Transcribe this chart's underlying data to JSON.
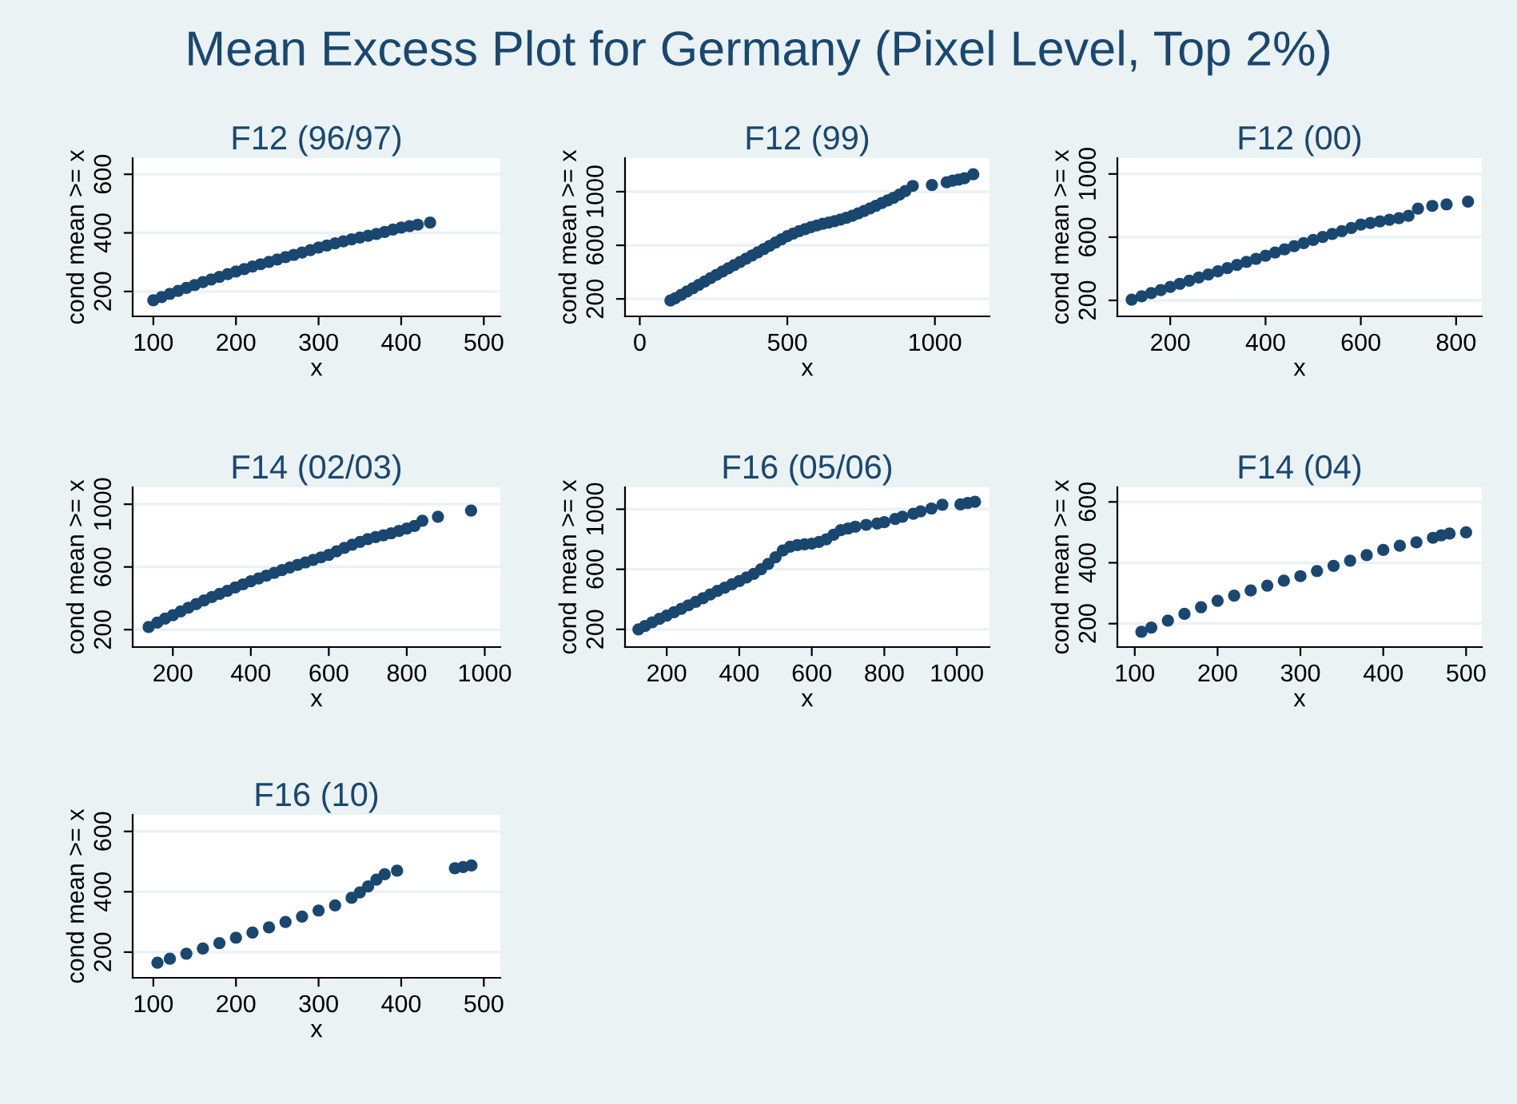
{
  "chart_data": [
    {
      "type": "other",
      "title": "Mean Excess Plot for Germany (Pixel Level, Top 2%)"
    },
    {
      "type": "scatter",
      "title": "F12 (96/97)",
      "xlabel": "x",
      "ylabel": "cond mean >= x",
      "color": "#1a476f",
      "marker": "circle",
      "grid": "y",
      "xlim": [
        75,
        520
      ],
      "ylim": [
        115,
        655
      ],
      "xticks": [
        100,
        200,
        300,
        400,
        500
      ],
      "yticks": [
        200,
        400,
        600
      ],
      "x": [
        100,
        110,
        120,
        130,
        140,
        150,
        160,
        170,
        180,
        190,
        200,
        210,
        220,
        230,
        240,
        250,
        260,
        270,
        280,
        290,
        300,
        310,
        320,
        330,
        340,
        350,
        360,
        370,
        380,
        390,
        400,
        410,
        420,
        435
      ],
      "values": [
        170,
        181,
        192,
        202,
        212,
        222,
        232,
        241,
        250,
        259,
        268,
        276,
        285,
        293,
        301,
        309,
        317,
        325,
        333,
        341,
        350,
        357,
        364,
        371,
        378,
        384,
        390,
        396,
        403,
        411,
        418,
        423,
        428,
        435
      ]
    },
    {
      "type": "scatter",
      "title": "F12 (99)",
      "xlabel": "x",
      "ylabel": "cond mean >= x",
      "color": "#1a476f",
      "marker": "circle",
      "grid": "y",
      "xlim": [
        -50,
        1185
      ],
      "ylim": [
        70,
        1250
      ],
      "xticks": [
        0,
        500,
        1000
      ],
      "yticks": [
        200,
        600,
        1000
      ],
      "x": [
        104,
        120,
        140,
        160,
        180,
        200,
        220,
        240,
        260,
        280,
        300,
        320,
        340,
        360,
        380,
        400,
        420,
        440,
        460,
        480,
        500,
        520,
        540,
        560,
        580,
        600,
        620,
        640,
        660,
        680,
        700,
        720,
        740,
        760,
        780,
        800,
        820,
        840,
        860,
        880,
        900,
        925,
        990,
        1040,
        1060,
        1080,
        1100,
        1130
      ],
      "values": [
        188,
        205,
        230,
        255,
        280,
        305,
        330,
        355,
        380,
        404,
        428,
        452,
        476,
        500,
        524,
        548,
        572,
        596,
        620,
        645,
        668,
        688,
        705,
        720,
        735,
        748,
        760,
        770,
        780,
        792,
        805,
        820,
        838,
        856,
        875,
        895,
        915,
        935,
        955,
        978,
        1005,
        1043,
        1050,
        1070,
        1082,
        1090,
        1100,
        1130
      ]
    },
    {
      "type": "scatter",
      "title": "F12 (00)",
      "xlabel": "x",
      "ylabel": "cond mean >= x",
      "color": "#1a476f",
      "marker": "circle",
      "grid": "y",
      "xlim": [
        89,
        854
      ],
      "ylim": [
        99,
        1100
      ],
      "xticks": [
        200,
        400,
        600,
        800
      ],
      "yticks": [
        200,
        600,
        1000
      ],
      "x": [
        119,
        140,
        160,
        180,
        200,
        220,
        240,
        260,
        280,
        300,
        320,
        340,
        360,
        380,
        400,
        420,
        440,
        460,
        480,
        500,
        520,
        540,
        560,
        580,
        600,
        620,
        640,
        660,
        680,
        700,
        720,
        750,
        780,
        825
      ],
      "values": [
        205,
        226,
        246,
        265,
        285,
        305,
        325,
        345,
        364,
        384,
        404,
        424,
        444,
        463,
        483,
        503,
        523,
        543,
        562,
        582,
        602,
        620,
        638,
        658,
        680,
        690,
        700,
        710,
        720,
        735,
        781,
        798,
        808,
        825
      ]
    },
    {
      "type": "scatter",
      "title": "F14 (02/03)",
      "xlabel": "x",
      "ylabel": "cond mean >= x",
      "color": "#1a476f",
      "marker": "circle",
      "grid": "y",
      "xlim": [
        97,
        1040
      ],
      "ylim": [
        89,
        1108
      ],
      "xticks": [
        200,
        400,
        600,
        800,
        1000
      ],
      "yticks": [
        200,
        600,
        1000
      ],
      "x": [
        138,
        160,
        180,
        200,
        220,
        240,
        260,
        280,
        300,
        320,
        340,
        360,
        380,
        400,
        420,
        440,
        460,
        480,
        500,
        520,
        540,
        560,
        580,
        600,
        620,
        640,
        660,
        680,
        700,
        720,
        740,
        760,
        780,
        800,
        820,
        840,
        880,
        965
      ],
      "values": [
        217,
        245,
        270,
        292,
        316,
        340,
        363,
        386,
        408,
        428,
        448,
        469,
        489,
        509,
        527,
        545,
        562,
        580,
        597,
        613,
        629,
        645,
        661,
        677,
        700,
        722,
        742,
        760,
        778,
        790,
        802,
        815,
        830,
        845,
        862,
        895,
        920,
        960
      ]
    },
    {
      "type": "scatter",
      "title": "F16 (05/06)",
      "xlabel": "x",
      "ylabel": "cond mean >= x",
      "color": "#1a476f",
      "marker": "circle",
      "grid": "y",
      "xlim": [
        85,
        1090
      ],
      "ylim": [
        82,
        1146
      ],
      "xticks": [
        200,
        400,
        600,
        800,
        1000
      ],
      "yticks": [
        200,
        600,
        1000
      ],
      "x": [
        122,
        140,
        160,
        180,
        200,
        220,
        240,
        260,
        280,
        300,
        320,
        340,
        360,
        380,
        400,
        420,
        440,
        460,
        480,
        500,
        520,
        540,
        560,
        580,
        600,
        620,
        640,
        660,
        680,
        700,
        720,
        750,
        780,
        800,
        830,
        850,
        880,
        900,
        930,
        960,
        1010,
        1030,
        1050
      ],
      "values": [
        200,
        222,
        247,
        270,
        292,
        314,
        337,
        360,
        383,
        407,
        432,
        456,
        478,
        500,
        521,
        545,
        570,
        600,
        636,
        680,
        725,
        750,
        761,
        766,
        771,
        782,
        800,
        830,
        861,
        872,
        884,
        896,
        905,
        914,
        935,
        950,
        970,
        986,
        1005,
        1030,
        1032,
        1042,
        1050
      ]
    },
    {
      "type": "scatter",
      "title": "F14 (04)",
      "xlabel": "x",
      "ylabel": "cond mean >= x",
      "color": "#1a476f",
      "marker": "circle",
      "grid": "y",
      "xlim": [
        79,
        519
      ],
      "ylim": [
        123,
        648
      ],
      "xticks": [
        100,
        200,
        300,
        400,
        500
      ],
      "yticks": [
        200,
        400,
        600
      ],
      "x": [
        108,
        120,
        140,
        160,
        180,
        200,
        220,
        240,
        260,
        280,
        300,
        320,
        340,
        360,
        380,
        400,
        420,
        440,
        460,
        470,
        480,
        500
      ],
      "values": [
        173,
        187,
        210,
        232,
        254,
        275,
        292,
        309,
        325,
        341,
        356,
        373,
        390,
        407,
        425,
        442,
        456,
        467,
        482,
        490,
        496,
        500
      ]
    },
    {
      "type": "scatter",
      "title": "F16 (10)",
      "xlabel": "x",
      "ylabel": "cond mean >= x",
      "color": "#1a476f",
      "marker": "circle",
      "grid": "y",
      "xlim": [
        75,
        520
      ],
      "ylim": [
        115,
        655
      ],
      "xticks": [
        100,
        200,
        300,
        400,
        500
      ],
      "yticks": [
        200,
        400,
        600
      ],
      "x": [
        105,
        120,
        140,
        160,
        180,
        200,
        220,
        240,
        260,
        280,
        300,
        320,
        340,
        350,
        360,
        370,
        380,
        395,
        465,
        475,
        485
      ],
      "values": [
        165,
        178,
        195,
        212,
        230,
        248,
        265,
        282,
        300,
        318,
        338,
        355,
        380,
        398,
        418,
        440,
        458,
        470,
        478,
        482,
        487
      ]
    }
  ]
}
